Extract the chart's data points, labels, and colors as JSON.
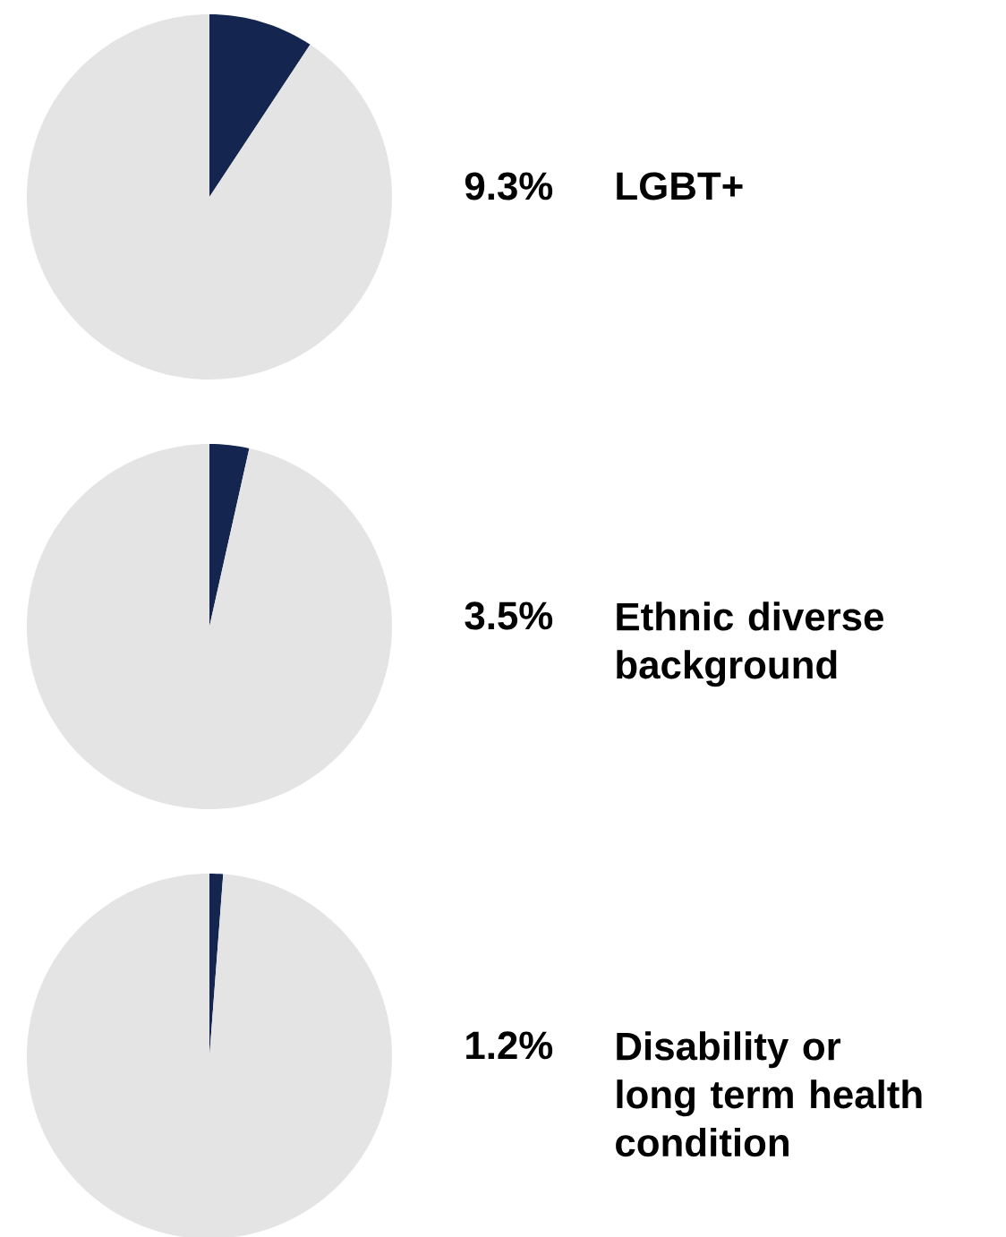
{
  "chart_data": [
    {
      "type": "pie",
      "title": "LGBT+",
      "annotations": [
        "9.3%"
      ],
      "categories": [
        null,
        null
      ],
      "values": [
        9.3,
        90.7
      ],
      "colors": [
        "#14254f",
        "#e4e4e4"
      ]
    },
    {
      "type": "pie",
      "title": "Ethnic diverse background",
      "annotations": [
        "3.5%"
      ],
      "categories": [
        null,
        null
      ],
      "values": [
        3.5,
        96.5
      ],
      "colors": [
        "#14254f",
        "#e4e4e4"
      ]
    },
    {
      "type": "pie",
      "title": "Disability or long term health condition",
      "annotations": [
        "1.2%"
      ],
      "categories": [
        null,
        null
      ],
      "values": [
        1.2,
        98.8
      ],
      "colors": [
        "#14254f",
        "#e4e4e4"
      ]
    }
  ]
}
